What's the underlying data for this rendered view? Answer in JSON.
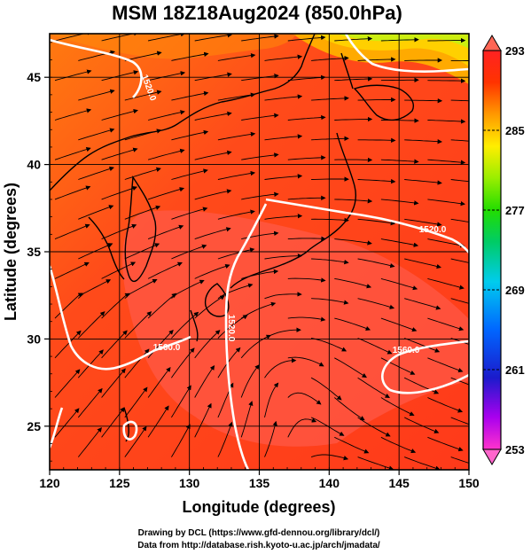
{
  "chart_data": {
    "type": "heatmap",
    "title": "MSM 18Z18Aug2024 (850.0hPa)",
    "xlabel": "Longitude (degrees)",
    "ylabel": "Latitude  (degrees)",
    "xlim": [
      120,
      150
    ],
    "ylim": [
      22.5,
      47.5
    ],
    "x_ticks": [
      "120",
      "125",
      "130",
      "135",
      "140",
      "145",
      "150"
    ],
    "y_ticks": [
      "25",
      "30",
      "35",
      "40",
      "45"
    ],
    "colorbar": {
      "min": 253,
      "max": 293,
      "tick_labels": [
        "293",
        "285",
        "277",
        "269",
        "261",
        "253"
      ],
      "colors": [
        "#ff00cc",
        "#8800ff",
        "#0000cc",
        "#0077ff",
        "#00ccee",
        "#00cc66",
        "#00e000",
        "#88ee00",
        "#ffee00",
        "#ff9900",
        "#ff3300",
        "#ff2222"
      ]
    },
    "field_colors": {
      "warm": "#ff3a1a",
      "warmest": "#ff5a4a",
      "mid": "#ff8a0a",
      "cool": "#ccee10"
    },
    "contour_labels": [
      "1520.0",
      "1520.0",
      "1520.0",
      "1560.0",
      "1560.0"
    ],
    "grid": true
  },
  "credits": {
    "line1": "Drawing by DCL (https://www.gfd-dennou.org/library/dcl/)",
    "line2": "Data from http://database.rish.kyoto-u.ac.jp/arch/jmadata/"
  }
}
